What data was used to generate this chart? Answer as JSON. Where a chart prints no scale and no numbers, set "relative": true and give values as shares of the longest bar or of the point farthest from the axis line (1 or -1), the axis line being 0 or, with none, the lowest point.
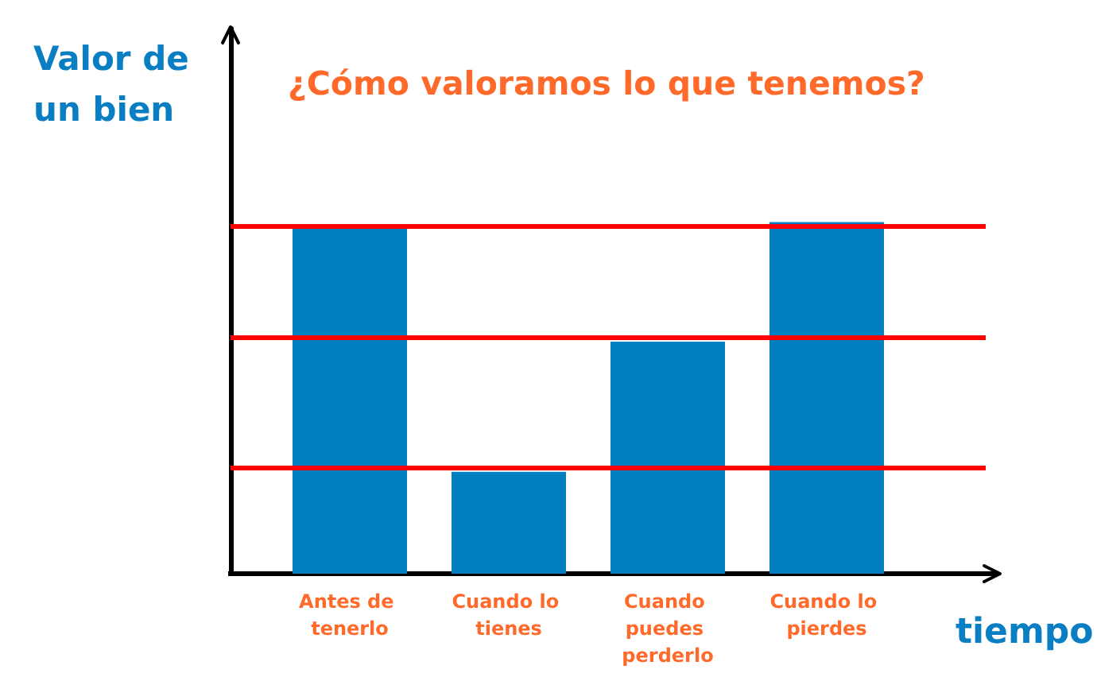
{
  "chart_data": {
    "type": "bar",
    "title": "¿Cómo valoramos lo que tenemos?",
    "xlabel": "tiempo",
    "ylabel": "Valor de un bien",
    "categories": [
      "Antes de tenerlo",
      "Cuando lo tienes",
      "Cuando puedes perderlo",
      "Cuando lo pierdes"
    ],
    "values": [
      0.99,
      0.29,
      0.66,
      1
    ],
    "color": "#0080c0",
    "relative": true,
    "ref_lines": [
      {
        "axis": "y",
        "value": 0.99,
        "color": "#ff0000"
      },
      {
        "axis": "y",
        "value": 0.67,
        "color": "#ff0000"
      },
      {
        "axis": "y",
        "value": 0.3,
        "color": "#ff0000"
      }
    ]
  }
}
